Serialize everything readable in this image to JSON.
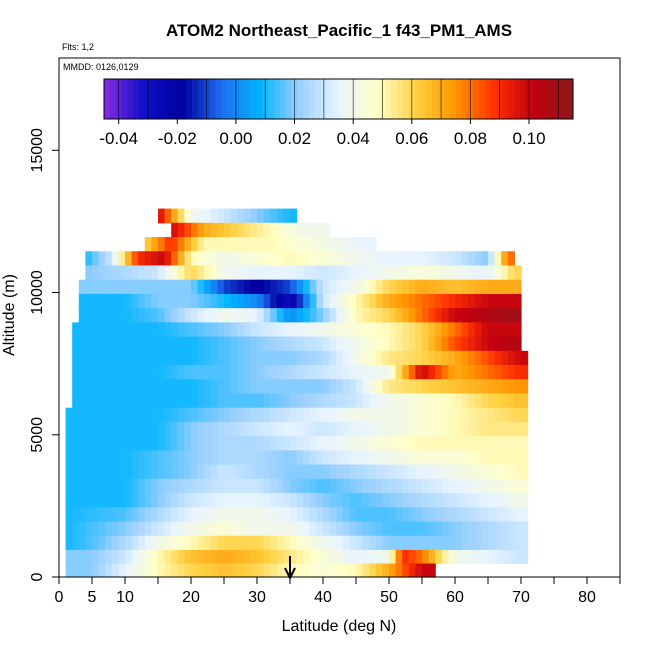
{
  "chart_data": {
    "type": "heatmap",
    "title": "ATOM2 Northeast_Pacific_1 f43_PM1_AMS",
    "subtitle_lines": [
      "Flts: 1,2",
      "MMDD: 0126,0129"
    ],
    "xlabel": "Latitude (deg N)",
    "ylabel": "Altitude (m)",
    "xlim": [
      0,
      85
    ],
    "ylim": [
      0,
      18000
    ],
    "x_ticks": [
      0,
      5,
      10,
      20,
      30,
      40,
      50,
      60,
      70,
      80
    ],
    "x_minor_ticks": [
      15,
      25,
      35,
      45,
      55,
      65,
      75,
      85
    ],
    "y_ticks": [
      0,
      5000,
      10000,
      15000
    ],
    "colorbar": {
      "min": -0.045,
      "max": 0.115,
      "ticks": [
        -0.04,
        -0.02,
        0.0,
        0.02,
        0.04,
        0.06,
        0.08,
        0.1
      ],
      "tick_labels": [
        "-0.04",
        "-0.02",
        "0.00",
        "0.02",
        "0.04",
        "0.06",
        "0.08",
        "0.10"
      ],
      "colors": [
        "#8a2be2",
        "#1010c8",
        "#0000a0",
        "#1e6ef0",
        "#00b4ff",
        "#9ad0ff",
        "#e8f4ff",
        "#ffffc8",
        "#ffd040",
        "#ff9400",
        "#ff3000",
        "#c00010",
        "#8b1a1a"
      ]
    },
    "arrow_latitude": 35,
    "layers": [
      {
        "alt": 12700,
        "x": [
          15,
          20,
          25,
          30,
          35
        ],
        "values": [
          0.1,
          0.04,
          0.03,
          0.02,
          0.01
        ]
      },
      {
        "alt": 12200,
        "x": [
          17,
          22,
          27,
          32,
          37,
          40
        ],
        "values": [
          0.1,
          0.07,
          0.06,
          0.05,
          0.04,
          0.04
        ]
      },
      {
        "alt": 11700,
        "x": [
          13,
          17,
          22,
          27,
          32,
          37,
          42,
          47
        ],
        "values": [
          0.06,
          0.09,
          0.05,
          0.05,
          0.05,
          0.045,
          0.04,
          0.035
        ]
      },
      {
        "alt": 11200,
        "x": [
          4,
          8,
          12,
          16,
          20,
          25,
          30,
          35,
          40,
          45,
          50,
          55,
          60,
          65,
          68
        ],
        "values": [
          0.01,
          0.03,
          0.09,
          0.1,
          0.05,
          0.04,
          0.045,
          0.05,
          0.045,
          0.04,
          0.035,
          0.035,
          0.03,
          0.02,
          0.08
        ]
      },
      {
        "alt": 10700,
        "x": [
          4,
          10,
          15,
          20,
          25,
          30,
          35,
          40,
          45,
          50,
          55,
          60,
          65,
          69
        ],
        "values": [
          0.02,
          0.025,
          0.03,
          0.06,
          0.04,
          0.035,
          0.035,
          0.03,
          0.035,
          0.04,
          0.045,
          0.04,
          0.035,
          0.06
        ]
      },
      {
        "alt": 10200,
        "x": [
          3,
          10,
          15,
          20,
          25,
          30,
          35,
          40,
          45,
          50,
          55,
          60,
          65,
          69
        ],
        "values": [
          0.02,
          0.02,
          0.02,
          0.02,
          -0.01,
          -0.02,
          -0.01,
          0.03,
          0.04,
          0.06,
          0.07,
          0.065,
          0.07,
          0.07
        ]
      },
      {
        "alt": 9700,
        "x": [
          3,
          10,
          15,
          20,
          25,
          30,
          35,
          40,
          45,
          50,
          55,
          60,
          65,
          69
        ],
        "values": [
          0.01,
          0.01,
          0.02,
          0.02,
          0.01,
          0.0,
          -0.03,
          0.03,
          0.05,
          0.07,
          0.08,
          0.09,
          0.1,
          0.1
        ]
      },
      {
        "alt": 9200,
        "x": [
          3,
          10,
          15,
          20,
          25,
          30,
          35,
          40,
          45,
          50,
          55,
          60,
          65,
          69
        ],
        "values": [
          0.01,
          0.01,
          0.015,
          0.03,
          0.04,
          0.035,
          0.0,
          0.02,
          0.05,
          0.06,
          0.08,
          0.1,
          0.105,
          0.11
        ]
      },
      {
        "alt": 8700,
        "x": [
          2,
          10,
          15,
          20,
          25,
          30,
          35,
          40,
          45,
          50,
          55,
          60,
          65,
          69
        ],
        "values": [
          0.01,
          0.01,
          0.01,
          0.015,
          0.02,
          0.03,
          0.035,
          0.04,
          0.045,
          0.05,
          0.06,
          0.08,
          0.1,
          0.1
        ]
      },
      {
        "alt": 8200,
        "x": [
          2,
          10,
          15,
          20,
          25,
          30,
          35,
          40,
          45,
          50,
          55,
          60,
          65,
          69
        ],
        "values": [
          0.01,
          0.01,
          0.01,
          0.01,
          0.015,
          0.02,
          0.025,
          0.03,
          0.04,
          0.05,
          0.06,
          0.085,
          0.1,
          0.105
        ]
      },
      {
        "alt": 7700,
        "x": [
          2,
          10,
          15,
          20,
          25,
          30,
          35,
          40,
          45,
          50,
          55,
          60,
          65,
          70
        ],
        "values": [
          0.01,
          0.01,
          0.01,
          0.01,
          0.015,
          0.02,
          0.02,
          0.025,
          0.04,
          0.055,
          0.06,
          0.07,
          0.085,
          0.1
        ]
      },
      {
        "alt": 7200,
        "x": [
          2,
          10,
          15,
          20,
          25,
          30,
          35,
          40,
          45,
          50,
          55,
          60,
          65,
          70
        ],
        "values": [
          0.01,
          0.01,
          0.01,
          0.015,
          0.015,
          0.02,
          0.025,
          0.03,
          0.035,
          0.04,
          0.1,
          0.07,
          0.08,
          0.09
        ]
      },
      {
        "alt": 6700,
        "x": [
          2,
          10,
          15,
          20,
          25,
          30,
          35,
          40,
          45,
          50,
          55,
          60,
          65,
          70
        ],
        "values": [
          0.01,
          0.01,
          0.01,
          0.01,
          0.015,
          0.02,
          0.02,
          0.02,
          0.03,
          0.055,
          0.06,
          0.065,
          0.07,
          0.075
        ]
      },
      {
        "alt": 6200,
        "x": [
          2,
          10,
          15,
          20,
          25,
          30,
          35,
          40,
          45,
          50,
          55,
          60,
          65,
          70
        ],
        "values": [
          0.01,
          0.01,
          0.01,
          0.01,
          0.015,
          0.015,
          0.02,
          0.025,
          0.03,
          0.04,
          0.045,
          0.05,
          0.06,
          0.065
        ]
      },
      {
        "alt": 5700,
        "x": [
          1,
          10,
          15,
          20,
          25,
          30,
          35,
          40,
          45,
          50,
          55,
          60,
          65,
          70
        ],
        "values": [
          0.01,
          0.01,
          0.01,
          0.015,
          0.02,
          0.025,
          0.03,
          0.035,
          0.04,
          0.04,
          0.045,
          0.05,
          0.055,
          0.06
        ]
      },
      {
        "alt": 5200,
        "x": [
          1,
          10,
          15,
          20,
          25,
          30,
          35,
          40,
          45,
          50,
          55,
          60,
          65,
          70
        ],
        "values": [
          0.01,
          0.01,
          0.01,
          0.02,
          0.025,
          0.03,
          0.035,
          0.03,
          0.035,
          0.04,
          0.045,
          0.05,
          0.055,
          0.055
        ]
      },
      {
        "alt": 4700,
        "x": [
          1,
          10,
          15,
          20,
          25,
          30,
          35,
          40,
          45,
          50,
          55,
          60,
          65,
          70
        ],
        "values": [
          0.01,
          0.01,
          0.01,
          0.02,
          0.025,
          0.025,
          0.03,
          0.035,
          0.04,
          0.045,
          0.05,
          0.05,
          0.05,
          0.05
        ]
      },
      {
        "alt": 4200,
        "x": [
          1,
          10,
          15,
          20,
          25,
          30,
          35,
          40,
          45,
          50,
          55,
          60,
          65,
          70
        ],
        "values": [
          0.01,
          0.01,
          0.015,
          0.02,
          0.025,
          0.025,
          0.02,
          0.03,
          0.035,
          0.04,
          0.045,
          0.045,
          0.05,
          0.05
        ]
      },
      {
        "alt": 3700,
        "x": [
          1,
          10,
          15,
          20,
          25,
          30,
          35,
          40,
          45,
          50,
          55,
          60,
          65,
          70
        ],
        "values": [
          0.01,
          0.01,
          0.015,
          0.02,
          0.03,
          0.025,
          0.02,
          0.02,
          0.025,
          0.03,
          0.035,
          0.04,
          0.045,
          0.05
        ]
      },
      {
        "alt": 3200,
        "x": [
          1,
          10,
          15,
          20,
          25,
          30,
          35,
          40,
          45,
          50,
          55,
          60,
          65,
          70
        ],
        "values": [
          0.01,
          0.01,
          0.02,
          0.025,
          0.03,
          0.03,
          0.02,
          0.015,
          0.02,
          0.025,
          0.03,
          0.035,
          0.04,
          0.045
        ]
      },
      {
        "alt": 2700,
        "x": [
          1,
          10,
          15,
          20,
          25,
          30,
          35,
          40,
          45,
          50,
          55,
          60,
          65,
          70
        ],
        "values": [
          0.01,
          0.01,
          0.02,
          0.03,
          0.035,
          0.035,
          0.03,
          0.02,
          0.015,
          0.02,
          0.025,
          0.03,
          0.035,
          0.04
        ]
      },
      {
        "alt": 2200,
        "x": [
          1,
          10,
          15,
          20,
          25,
          30,
          35,
          40,
          45,
          50,
          55,
          60,
          65,
          70
        ],
        "values": [
          0.01,
          0.015,
          0.025,
          0.035,
          0.04,
          0.04,
          0.035,
          0.025,
          0.015,
          0.015,
          0.02,
          0.025,
          0.03,
          0.035
        ]
      },
      {
        "alt": 1700,
        "x": [
          1,
          10,
          15,
          20,
          25,
          30,
          35,
          40,
          45,
          50,
          55,
          60,
          65,
          70
        ],
        "values": [
          0.01,
          0.02,
          0.03,
          0.04,
          0.045,
          0.04,
          0.04,
          0.03,
          0.02,
          0.015,
          0.015,
          0.02,
          0.025,
          0.03
        ]
      },
      {
        "alt": 1200,
        "x": [
          1,
          5,
          10,
          15,
          20,
          25,
          30,
          35,
          40,
          45,
          50,
          55,
          60,
          65,
          70
        ],
        "values": [
          0.01,
          0.015,
          0.025,
          0.04,
          0.05,
          0.06,
          0.06,
          0.05,
          0.04,
          0.03,
          0.02,
          0.02,
          0.02,
          0.025,
          0.03
        ]
      },
      {
        "alt": 700,
        "x": [
          1,
          5,
          10,
          15,
          20,
          25,
          30,
          35,
          40,
          45,
          50,
          52,
          55,
          60,
          65,
          70
        ],
        "values": [
          0.02,
          0.02,
          0.03,
          0.05,
          0.065,
          0.07,
          0.065,
          0.055,
          0.045,
          0.035,
          0.04,
          0.09,
          0.08,
          0.04,
          0.035,
          0.03
        ]
      },
      {
        "alt": 250,
        "x": [
          1,
          5,
          10,
          15,
          20,
          25,
          30,
          35,
          40,
          45,
          50,
          55,
          56
        ],
        "values": [
          0.02,
          0.02,
          0.035,
          0.05,
          0.06,
          0.065,
          0.06,
          0.05,
          0.045,
          0.05,
          0.07,
          0.1,
          0.1
        ]
      }
    ]
  }
}
